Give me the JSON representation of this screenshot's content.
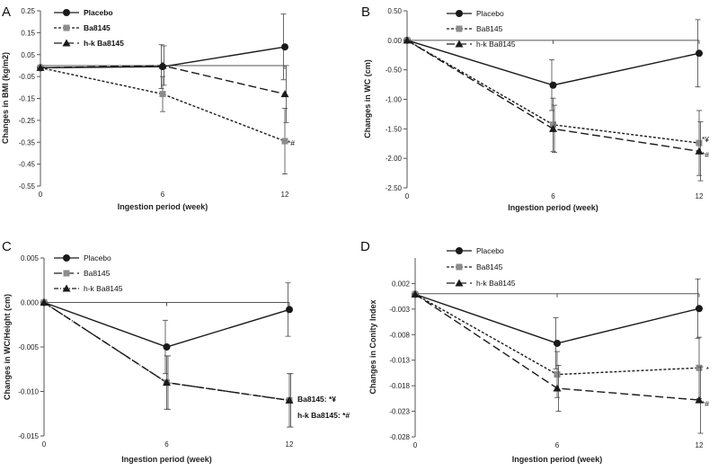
{
  "figure": {
    "panels": [
      {
        "letter": "A",
        "xlabel": "Ingestion period (week)",
        "ylabel": "Changes in BMI (kg/m2)"
      },
      {
        "letter": "B",
        "xlabel": "Ingestion period (week)",
        "ylabel": "Changes in WC (cm)"
      },
      {
        "letter": "C",
        "xlabel": "Ingestion period (week)",
        "ylabel": "Changes in WC/Height (cm)"
      },
      {
        "letter": "D",
        "xlabel": "Ingestion period (week)",
        "ylabel": "Changes in Conity Index"
      }
    ]
  },
  "chart_data": [
    {
      "type": "line",
      "panel": "A",
      "title": "",
      "xlabel": "Ingestion period (week)",
      "ylabel": "Changes in BMI (kg/m2)",
      "x": [
        0,
        6,
        12
      ],
      "xticks": [
        "0",
        "6",
        "12"
      ],
      "ylim": [
        -0.55,
        0.25
      ],
      "yticks": [
        "0.25",
        "0.15",
        "0.05",
        "-0.05",
        "-0.15",
        "-0.25",
        "-0.35",
        "-0.45",
        "-0.55"
      ],
      "legend_position": "top-left",
      "legend_bold": true,
      "series": [
        {
          "name": "Placebo",
          "marker": "circle",
          "dash": "solid",
          "color": "#1a1a1a",
          "values": [
            -0.01,
            -0.005,
            0.085
          ],
          "error": [
            0,
            0.1,
            0.15
          ]
        },
        {
          "name": "Ba8145",
          "marker": "square",
          "dash": "short",
          "color": "#8c8c8c",
          "values": [
            -0.01,
            -0.13,
            -0.345
          ],
          "error": [
            0,
            0.08,
            0.15
          ]
        },
        {
          "name": "h-k Ba8145",
          "marker": "triangle",
          "dash": "long",
          "color": "#1a1a1a",
          "values": [
            -0.01,
            0.0,
            -0.13
          ],
          "error": [
            0,
            0.09,
            0.13
          ]
        }
      ],
      "annotations": [
        {
          "text": "*#",
          "at_x": 12,
          "at_y": -0.345
        }
      ]
    },
    {
      "type": "line",
      "panel": "B",
      "title": "",
      "xlabel": "Ingestion period (week)",
      "ylabel": "Changes in WC (cm)",
      "x": [
        0,
        6,
        12
      ],
      "xticks": [
        "0",
        "6",
        "12"
      ],
      "ylim": [
        -2.5,
        0.5
      ],
      "yticks": [
        "0.50",
        "0.00",
        "-0.50",
        "-1.00",
        "-1.50",
        "-2.00",
        "-2.50"
      ],
      "legend_position": "top-center",
      "legend_bold": false,
      "series": [
        {
          "name": "Placebo",
          "marker": "circle",
          "dash": "solid",
          "color": "#1a1a1a",
          "values": [
            0,
            -0.76,
            -0.22
          ],
          "error": [
            0,
            0.43,
            0.57
          ]
        },
        {
          "name": "Ba8145",
          "marker": "square",
          "dash": "short",
          "color": "#8c8c8c",
          "values": [
            0,
            -1.43,
            -1.74
          ],
          "error": [
            0,
            0.45,
            0.55
          ]
        },
        {
          "name": "h-k Ba8145",
          "marker": "triangle",
          "dash": "long",
          "color": "#1a1a1a",
          "values": [
            0,
            -1.5,
            -1.88
          ],
          "error": [
            0,
            0.4,
            0.5
          ]
        }
      ],
      "annotations": [
        {
          "text": "*¥",
          "at_x": 12,
          "at_y": -1.68
        },
        {
          "text": "*#",
          "at_x": 12,
          "at_y": -1.93
        }
      ]
    },
    {
      "type": "line",
      "panel": "C",
      "title": "",
      "xlabel": "Ingestion period (week)",
      "ylabel": "Changes in WC/Height (cm)",
      "x": [
        0,
        6,
        12
      ],
      "xticks": [
        "0",
        "6",
        "12"
      ],
      "ylim": [
        -0.015,
        0.005
      ],
      "yticks": [
        "0.005",
        "0.000",
        "-0.005",
        "-0.010",
        "-0.015"
      ],
      "legend_position": "top-left",
      "legend_bold": false,
      "series": [
        {
          "name": "Placebo",
          "marker": "circle",
          "dash": "solid",
          "color": "#1a1a1a",
          "values": [
            0,
            -0.005,
            -0.0008
          ],
          "error": [
            0,
            0.003,
            0.003
          ]
        },
        {
          "name": "Ba8145",
          "marker": "square",
          "dash": "long",
          "color": "#8c8c8c",
          "values": [
            0,
            -0.009,
            -0.011
          ],
          "error": [
            0,
            0.003,
            0.003
          ]
        },
        {
          "name": "h-k Ba8145",
          "marker": "triangle",
          "dash": "dashdot",
          "color": "#1a1a1a",
          "values": [
            0,
            -0.009,
            -0.011
          ],
          "error": [
            0,
            0.003,
            0.003
          ]
        }
      ],
      "annotations": [
        {
          "text": "Ba8145: *¥",
          "at_x": 12,
          "at_y": -0.0094
        },
        {
          "text": "h-k Ba8145: *#",
          "at_x": 12,
          "at_y": -0.0113
        }
      ]
    },
    {
      "type": "line",
      "panel": "D",
      "title": "",
      "xlabel": "Ingestion period (week)",
      "ylabel": "Changes in Conity Index",
      "x": [
        0,
        6,
        12
      ],
      "xticks": [
        "0",
        "6",
        "12"
      ],
      "ylim": [
        -0.028,
        0.007
      ],
      "yticks": [
        "0.002",
        "-0.003",
        "-0.008",
        "-0.013",
        "-0.018",
        "-0.023",
        "-0.028"
      ],
      "legend_position": "top-left",
      "legend_bold": false,
      "series": [
        {
          "name": "Placebo",
          "marker": "circle",
          "dash": "solid",
          "color": "#1a1a1a",
          "values": [
            -0.0001,
            -0.0097,
            -0.0029
          ],
          "error": [
            0,
            0.005,
            0.0058
          ]
        },
        {
          "name": "Ba8145",
          "marker": "square",
          "dash": "short",
          "color": "#8c8c8c",
          "values": [
            -0.0001,
            -0.0158,
            -0.0145
          ],
          "error": [
            0,
            0.0045,
            0.006
          ]
        },
        {
          "name": "h-k Ba8145",
          "marker": "triangle",
          "dash": "long",
          "color": "#1a1a1a",
          "values": [
            -0.0001,
            -0.0185,
            -0.0208
          ],
          "error": [
            0,
            0.0045,
            0.0065
          ]
        }
      ],
      "annotations": [
        {
          "text": "*",
          "at_x": 12,
          "at_y": -0.0145
        },
        {
          "text": "*#",
          "at_x": 12,
          "at_y": -0.0208
        }
      ]
    }
  ]
}
